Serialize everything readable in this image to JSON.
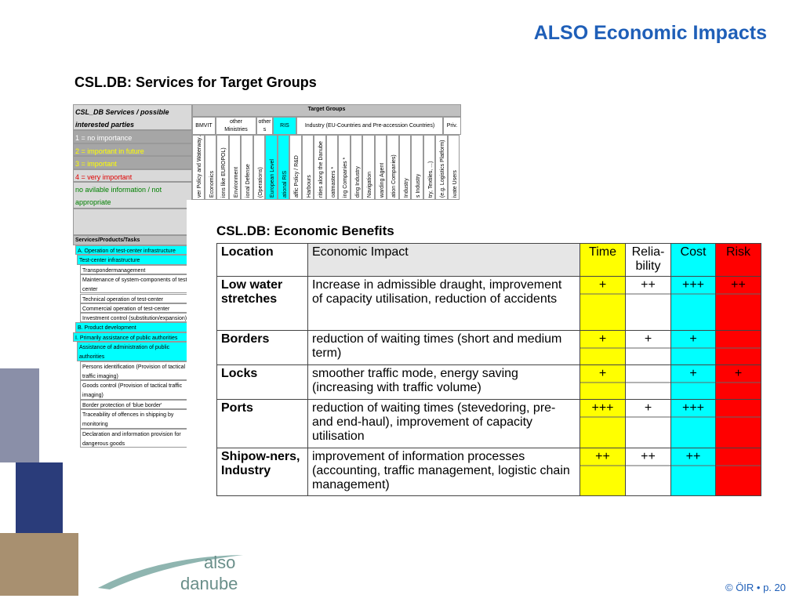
{
  "title": "ALSO Economic Impacts",
  "subtitle": "CSL.DB: Services for Target Groups",
  "background_table": {
    "header": "CSL_DB Services / possible interested parties",
    "legend": [
      "1 =  no importance",
      "2 =  important in future",
      "3 =  important",
      "4 =  very important",
      "no avilable information / not appropriate"
    ],
    "target_groups": "Target Groups",
    "group_heads": [
      "BMVIT",
      "other Ministries",
      "other s",
      "RIS",
      "Industry (EU-Countries and Pre-accession Countries)",
      "Priv."
    ],
    "rotated_heads": [
      "ver Policy and Waterway Authority",
      "Economics",
      "ions like EUROPOL)",
      "Environment",
      "ional Defense",
      "(Operations)",
      "European Level",
      "ational RIS",
      "affic Policy / R&D",
      "Harbours",
      "rities along the Danube",
      "oatmasters *",
      "ing Companies *",
      "ding Industry",
      "Navigation",
      "warding Agent",
      "ation Companies)",
      "Industry",
      "s Industry",
      "try, Textiles, ...)",
      "(e.g. Logistics Platform)",
      "ivate Users"
    ],
    "services_head": "Services/Products/Tasks",
    "services": [
      "A. Operation of test-center infrastructure",
      "Test-center infrastructure",
      "Transpondermanagement",
      "Maintenance of system-components of test-center",
      "Technical operation of test-center",
      "Commercial operation of test-center",
      "Investment control (substitution/expansion)",
      "B. Product development",
      "I. Primarily assistance of public authorities",
      "Assistance of administration of public authorities",
      "Persons identification (Provision of  tactical traffic imaging)",
      "Goods control (Provision of  tactical traffic imaging)",
      "Border protection of 'blue border'",
      "Traceability of offences in shipping by monitoring",
      "Declaration and information provision for dangerous goods"
    ]
  },
  "benefits": {
    "title": "CSL.DB: Economic Benefits",
    "columns": [
      "Location",
      "Economic Impact",
      "Time",
      "Relia-bility",
      "Cost",
      "Risk"
    ],
    "rows": [
      {
        "location": "Low water stretches",
        "impact": "Increase in admissible draught, improvement of capacity utilisation, reduction of accidents",
        "time": "+",
        "reliability": "++",
        "cost": "+++",
        "risk": "++"
      },
      {
        "location": "Borders",
        "impact": "reduction of waiting times (short and medium term)",
        "time": "+",
        "reliability": "+",
        "cost": "+"
      },
      {
        "location": "Locks",
        "impact": "smoother traffic mode, energy saving (increasing with traffic volume)",
        "time": "+",
        "cost": "+",
        "risk": "+"
      },
      {
        "location": "Ports",
        "impact": "reduction of waiting times (stevedoring, pre- and end-haul), improvement of capacity utilisation",
        "time": "+++",
        "reliability": "+",
        "cost": "+++"
      },
      {
        "location": "Shipow-ners, Industry",
        "impact": "improvement of information processes (accounting, traffic management, logistic chain management)",
        "time": "++",
        "reliability": "++",
        "cost": "++"
      }
    ]
  },
  "logo": {
    "word1": "also",
    "word2": "danube"
  },
  "footer": "© ÖIR • p. 20"
}
